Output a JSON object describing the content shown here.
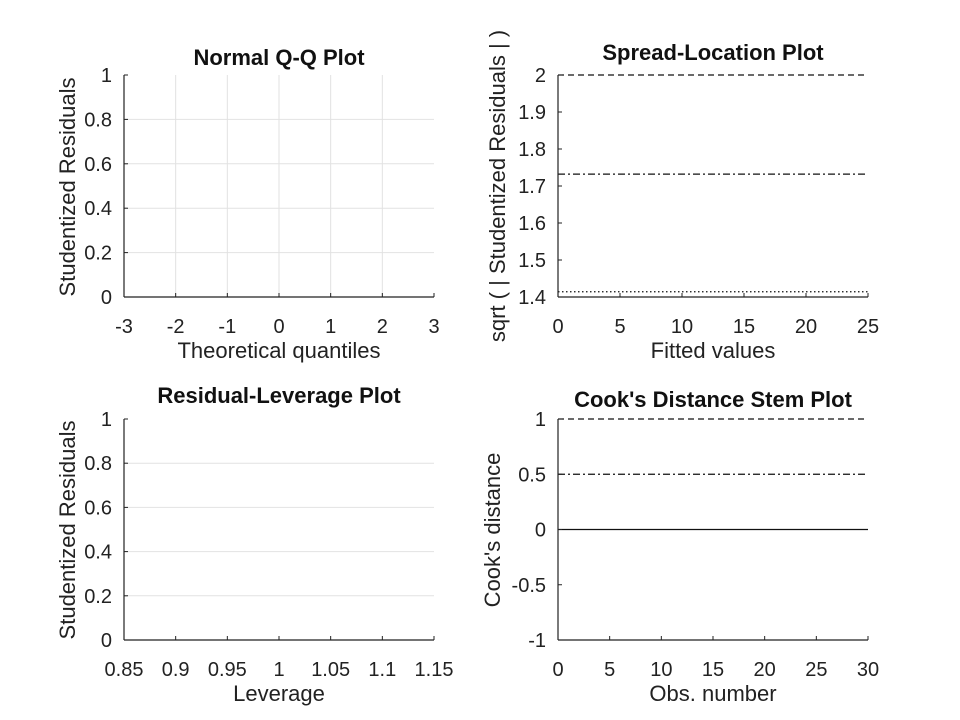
{
  "chart_data": [
    {
      "type": "scatter",
      "title": "Normal Q-Q Plot",
      "xlabel": "Theoretical quantiles",
      "ylabel": "Studentized Residuals",
      "xlim": [
        -3,
        3
      ],
      "ylim": [
        0,
        1
      ],
      "xticks": [
        -3,
        -2,
        -1,
        0,
        1,
        2,
        3
      ],
      "yticks": [
        0,
        0.2,
        0.4,
        0.6,
        0.8,
        1
      ],
      "grid": true,
      "series": [],
      "hlines": []
    },
    {
      "type": "scatter",
      "title": "Spread-Location Plot",
      "xlabel": "Fitted values",
      "ylabel": "sqrt ( | Studentized Residuals | )",
      "xlim": [
        0,
        25
      ],
      "ylim": [
        1.4,
        2
      ],
      "xticks": [
        0,
        5,
        10,
        15,
        20,
        25
      ],
      "yticks": [
        1.4,
        1.5,
        1.6,
        1.7,
        1.8,
        1.9,
        2
      ],
      "grid": false,
      "series": [],
      "hlines": [
        {
          "y": 2.0,
          "style": "dashed"
        },
        {
          "y": 1.7321,
          "style": "dashdot"
        },
        {
          "y": 1.4142,
          "style": "dotted"
        }
      ]
    },
    {
      "type": "scatter",
      "title": "Residual-Leverage Plot",
      "xlabel": "Leverage",
      "ylabel": "Studentized Residuals",
      "xlim": [
        0.85,
        1.15
      ],
      "ylim": [
        0,
        1
      ],
      "xticks": [
        0.85,
        0.9,
        0.95,
        1,
        1.05,
        1.1,
        1.15
      ],
      "yticks": [
        0,
        0.2,
        0.4,
        0.6,
        0.8,
        1
      ],
      "grid": "y",
      "series": [],
      "hlines": []
    },
    {
      "type": "stem",
      "title": "Cook's Distance Stem Plot",
      "xlabel": "Obs. number",
      "ylabel": "Cook's distance",
      "xlim": [
        0,
        30
      ],
      "ylim": [
        -1,
        1
      ],
      "xticks": [
        0,
        5,
        10,
        15,
        20,
        25,
        30
      ],
      "yticks": [
        -1,
        -0.5,
        0,
        0.5,
        1
      ],
      "grid": false,
      "series": [],
      "hlines": [
        {
          "y": 1,
          "style": "dashed"
        },
        {
          "y": 0.5,
          "style": "dashdot"
        },
        {
          "y": 0,
          "style": "solid"
        }
      ]
    }
  ]
}
